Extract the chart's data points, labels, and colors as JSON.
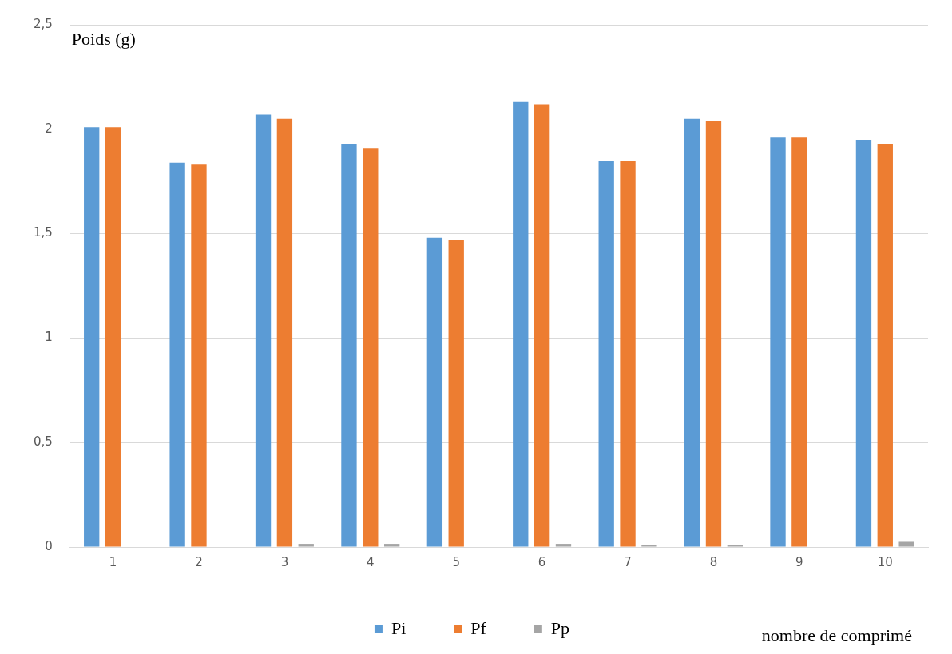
{
  "chart_data": {
    "type": "bar",
    "categories": [
      "1",
      "2",
      "3",
      "4",
      "5",
      "6",
      "7",
      "8",
      "9",
      "10"
    ],
    "series": [
      {
        "name": "Pi",
        "color": "#5b9bd5",
        "values": [
          2.01,
          1.84,
          2.07,
          1.93,
          1.48,
          2.13,
          1.85,
          2.05,
          1.96,
          1.95
        ]
      },
      {
        "name": "Pf",
        "color": "#ed7d31",
        "values": [
          2.01,
          1.83,
          2.05,
          1.91,
          1.47,
          2.12,
          1.85,
          2.04,
          1.96,
          1.93
        ]
      },
      {
        "name": "Pp",
        "color": "#a5a5a5",
        "values": [
          0,
          0,
          0.015,
          0.015,
          0,
          0.015,
          0.008,
          0.008,
          0,
          0.025
        ]
      }
    ],
    "ylabel": "Poids (g)",
    "xlabel": "nombre de comprimé",
    "ylim": [
      0,
      2.5
    ],
    "yticks": [
      0,
      {
        "value": 0.5,
        "label": "0,5"
      },
      1,
      {
        "value": 1.5,
        "label": "1,5"
      },
      2,
      {
        "value": 2.5,
        "label": "2,5"
      }
    ],
    "grid": "y",
    "legend": "bottom"
  }
}
